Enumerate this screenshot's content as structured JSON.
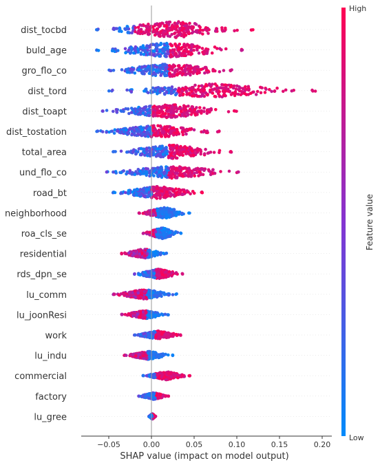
{
  "chart_data": {
    "type": "scatter",
    "subtype": "shap-beeswarm",
    "xlabel": "SHAP value (impact on model output)",
    "x_ticks": [
      -0.05,
      0.0,
      0.05,
      0.1,
      0.15,
      0.2
    ],
    "x_tick_labels": [
      "−0.05",
      "0.00",
      "0.05",
      "0.10",
      "0.15",
      "0.20"
    ],
    "xlim": [
      -0.08,
      0.21
    ],
    "colorbar": {
      "label": "Feature value",
      "high_label": "High",
      "low_label": "Low",
      "high_color": "#ff0052",
      "low_color": "#008bfb"
    },
    "features": [
      {
        "name": "dist_tocbd",
        "min": -0.065,
        "max": 0.12,
        "spread": 12,
        "split": -0.02,
        "reverse": false
      },
      {
        "name": "buld_age",
        "min": -0.065,
        "max": 0.108,
        "spread": 11,
        "split": 0.02,
        "reverse": false
      },
      {
        "name": "gro_flo_co",
        "min": -0.05,
        "max": 0.095,
        "spread": 10,
        "split": 0.02,
        "reverse": false
      },
      {
        "name": "dist_tord",
        "min": -0.05,
        "max": 0.192,
        "spread": 10,
        "split": 0.03,
        "reverse": false
      },
      {
        "name": "dist_toapt",
        "min": -0.06,
        "max": 0.1,
        "spread": 10,
        "split": 0.0,
        "reverse": false
      },
      {
        "name": "dist_tostation",
        "min": -0.065,
        "max": 0.08,
        "spread": 9,
        "split": 0.0,
        "reverse": false
      },
      {
        "name": "total_area",
        "min": -0.045,
        "max": 0.095,
        "spread": 10,
        "split": 0.02,
        "reverse": false
      },
      {
        "name": "und_flo_co",
        "min": -0.053,
        "max": 0.103,
        "spread": 9,
        "split": 0.02,
        "reverse": false
      },
      {
        "name": "road_bt",
        "min": -0.045,
        "max": 0.06,
        "spread": 9,
        "split": 0.0,
        "reverse": false
      },
      {
        "name": "neighborhood",
        "min": -0.015,
        "max": 0.045,
        "spread": 8,
        "split": 0.005,
        "reverse": true
      },
      {
        "name": "roa_cls_se",
        "min": -0.01,
        "max": 0.035,
        "spread": 8,
        "split": 0.005,
        "reverse": true
      },
      {
        "name": "residential",
        "min": -0.035,
        "max": 0.018,
        "spread": 7,
        "split": -0.005,
        "reverse": true
      },
      {
        "name": "rds_dpn_se",
        "min": -0.02,
        "max": 0.037,
        "spread": 7,
        "split": 0.005,
        "reverse": false
      },
      {
        "name": "lu_comm",
        "min": -0.045,
        "max": 0.03,
        "spread": 7,
        "split": -0.005,
        "reverse": true
      },
      {
        "name": "lu_joonResi",
        "min": -0.035,
        "max": 0.02,
        "spread": 6,
        "split": -0.005,
        "reverse": true
      },
      {
        "name": "work",
        "min": -0.02,
        "max": 0.035,
        "spread": 6,
        "split": 0.005,
        "reverse": false
      },
      {
        "name": "lu_indu",
        "min": -0.032,
        "max": 0.025,
        "spread": 6,
        "split": -0.005,
        "reverse": true
      },
      {
        "name": "commercial",
        "min": -0.01,
        "max": 0.045,
        "spread": 6,
        "split": 0.005,
        "reverse": false
      },
      {
        "name": "factory",
        "min": -0.015,
        "max": 0.02,
        "spread": 5,
        "split": 0.005,
        "reverse": false
      },
      {
        "name": "lu_gree",
        "min": -0.003,
        "max": 0.005,
        "spread": 4,
        "split": 0.001,
        "reverse": false
      }
    ]
  }
}
